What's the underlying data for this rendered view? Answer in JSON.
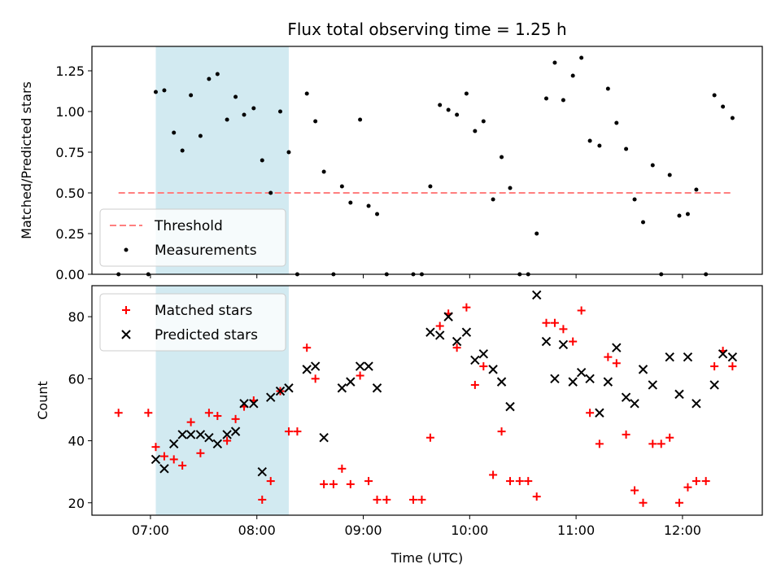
{
  "chart_data": [
    {
      "type": "scatter",
      "title": "Flux total observing time = 1.25 h",
      "xlabel": "",
      "ylabel": "Matched/Predicted stars",
      "x_unit": "hours UTC",
      "xlim": [
        6.45,
        12.75
      ],
      "ylim": [
        0,
        1.4
      ],
      "yticks": [
        0,
        0.25,
        0.5,
        0.75,
        1.0,
        1.25
      ],
      "ytick_labels": [
        "0.00",
        "0.25",
        "0.50",
        "0.75",
        "1.00",
        "1.25"
      ],
      "highlight_span": {
        "x_start": 7.05,
        "x_end": 8.3,
        "color": "#add8e6"
      },
      "legend_position": "lower-left",
      "grid": false,
      "series": [
        {
          "name": "Threshold",
          "kind": "line",
          "style": "dashed",
          "color": "#ff7f7f",
          "x": [
            6.7,
            12.47
          ],
          "y": [
            0.5,
            0.5
          ]
        },
        {
          "name": "Measurements",
          "kind": "scatter",
          "marker": "dot",
          "color": "#000000",
          "points": [
            [
              6.7,
              0.0
            ],
            [
              6.98,
              0.0
            ],
            [
              7.05,
              1.12
            ],
            [
              7.13,
              1.13
            ],
            [
              7.22,
              0.87
            ],
            [
              7.3,
              0.76
            ],
            [
              7.38,
              1.1
            ],
            [
              7.47,
              0.85
            ],
            [
              7.55,
              1.2
            ],
            [
              7.63,
              1.23
            ],
            [
              7.72,
              0.95
            ],
            [
              7.8,
              1.09
            ],
            [
              7.88,
              0.98
            ],
            [
              7.97,
              1.02
            ],
            [
              8.05,
              0.7
            ],
            [
              8.13,
              0.5
            ],
            [
              8.22,
              1.0
            ],
            [
              8.3,
              0.75
            ],
            [
              8.38,
              0.0
            ],
            [
              8.47,
              1.11
            ],
            [
              8.55,
              0.94
            ],
            [
              8.63,
              0.63
            ],
            [
              8.72,
              0.0
            ],
            [
              8.8,
              0.54
            ],
            [
              8.88,
              0.44
            ],
            [
              8.97,
              0.95
            ],
            [
              9.05,
              0.42
            ],
            [
              9.13,
              0.37
            ],
            [
              9.22,
              0.0
            ],
            [
              9.47,
              0.0
            ],
            [
              9.55,
              0.0
            ],
            [
              9.63,
              0.54
            ],
            [
              9.72,
              1.04
            ],
            [
              9.8,
              1.01
            ],
            [
              9.88,
              0.98
            ],
            [
              9.97,
              1.11
            ],
            [
              10.05,
              0.88
            ],
            [
              10.13,
              0.94
            ],
            [
              10.22,
              0.46
            ],
            [
              10.3,
              0.72
            ],
            [
              10.38,
              0.53
            ],
            [
              10.47,
              0.0
            ],
            [
              10.55,
              0.0
            ],
            [
              10.63,
              0.25
            ],
            [
              10.72,
              1.08
            ],
            [
              10.8,
              1.3
            ],
            [
              10.88,
              1.07
            ],
            [
              10.97,
              1.22
            ],
            [
              11.05,
              1.33
            ],
            [
              11.13,
              0.82
            ],
            [
              11.22,
              0.79
            ],
            [
              11.3,
              1.14
            ],
            [
              11.38,
              0.93
            ],
            [
              11.47,
              0.77
            ],
            [
              11.55,
              0.46
            ],
            [
              11.63,
              0.32
            ],
            [
              11.72,
              0.67
            ],
            [
              11.8,
              0.0
            ],
            [
              11.88,
              0.61
            ],
            [
              11.97,
              0.36
            ],
            [
              12.05,
              0.37
            ],
            [
              12.13,
              0.52
            ],
            [
              12.22,
              0.0
            ],
            [
              12.3,
              1.1
            ],
            [
              12.38,
              1.03
            ],
            [
              12.47,
              0.96
            ]
          ]
        }
      ]
    },
    {
      "type": "scatter",
      "title": "",
      "xlabel": "Time (UTC)",
      "ylabel": "Count",
      "x_unit": "hours UTC",
      "xlim": [
        6.45,
        12.75
      ],
      "ylim": [
        16,
        90
      ],
      "yticks": [
        20,
        40,
        60,
        80
      ],
      "ytick_labels": [
        "20",
        "40",
        "60",
        "80"
      ],
      "xticks": [
        7,
        8,
        9,
        10,
        11,
        12
      ],
      "xtick_labels": [
        "07:00",
        "08:00",
        "09:00",
        "10:00",
        "11:00",
        "12:00"
      ],
      "highlight_span": {
        "x_start": 7.05,
        "x_end": 8.3,
        "color": "#add8e6"
      },
      "legend_position": "upper-left",
      "grid": false,
      "series": [
        {
          "name": "Matched stars",
          "kind": "scatter",
          "marker": "plus",
          "color": "#ff0000",
          "points": [
            [
              6.7,
              49
            ],
            [
              6.98,
              49
            ],
            [
              7.05,
              38
            ],
            [
              7.13,
              35
            ],
            [
              7.22,
              34
            ],
            [
              7.3,
              32
            ],
            [
              7.38,
              46
            ],
            [
              7.47,
              36
            ],
            [
              7.55,
              49
            ],
            [
              7.63,
              48
            ],
            [
              7.72,
              40
            ],
            [
              7.8,
              47
            ],
            [
              7.88,
              51
            ],
            [
              7.97,
              53
            ],
            [
              8.05,
              21
            ],
            [
              8.13,
              27
            ],
            [
              8.22,
              56
            ],
            [
              8.3,
              43
            ],
            [
              8.38,
              43
            ],
            [
              8.47,
              70
            ],
            [
              8.55,
              60
            ],
            [
              8.63,
              26
            ],
            [
              8.72,
              26
            ],
            [
              8.8,
              31
            ],
            [
              8.88,
              26
            ],
            [
              8.97,
              61
            ],
            [
              9.05,
              27
            ],
            [
              9.13,
              21
            ],
            [
              9.22,
              21
            ],
            [
              9.47,
              21
            ],
            [
              9.55,
              21
            ],
            [
              9.63,
              41
            ],
            [
              9.72,
              77
            ],
            [
              9.8,
              81
            ],
            [
              9.88,
              70
            ],
            [
              9.97,
              83
            ],
            [
              10.05,
              58
            ],
            [
              10.13,
              64
            ],
            [
              10.22,
              29
            ],
            [
              10.3,
              43
            ],
            [
              10.38,
              27
            ],
            [
              10.47,
              27
            ],
            [
              10.55,
              27
            ],
            [
              10.63,
              22
            ],
            [
              10.72,
              78
            ],
            [
              10.8,
              78
            ],
            [
              10.88,
              76
            ],
            [
              10.97,
              72
            ],
            [
              11.05,
              82
            ],
            [
              11.13,
              49
            ],
            [
              11.22,
              39
            ],
            [
              11.3,
              67
            ],
            [
              11.38,
              65
            ],
            [
              11.47,
              42
            ],
            [
              11.55,
              24
            ],
            [
              11.63,
              20
            ],
            [
              11.72,
              39
            ],
            [
              11.8,
              39
            ],
            [
              11.88,
              41
            ],
            [
              11.97,
              20
            ],
            [
              12.05,
              25
            ],
            [
              12.13,
              27
            ],
            [
              12.22,
              27
            ],
            [
              12.3,
              64
            ],
            [
              12.38,
              69
            ],
            [
              12.47,
              64
            ]
          ]
        },
        {
          "name": "Predicted stars",
          "kind": "scatter",
          "marker": "x",
          "color": "#000000",
          "points": [
            [
              7.05,
              34
            ],
            [
              7.13,
              31
            ],
            [
              7.22,
              39
            ],
            [
              7.3,
              42
            ],
            [
              7.38,
              42
            ],
            [
              7.47,
              42
            ],
            [
              7.55,
              41
            ],
            [
              7.63,
              39
            ],
            [
              7.72,
              42
            ],
            [
              7.8,
              43
            ],
            [
              7.88,
              52
            ],
            [
              7.97,
              52
            ],
            [
              8.05,
              30
            ],
            [
              8.13,
              54
            ],
            [
              8.22,
              56
            ],
            [
              8.3,
              57
            ],
            [
              8.47,
              63
            ],
            [
              8.55,
              64
            ],
            [
              8.63,
              41
            ],
            [
              8.8,
              57
            ],
            [
              8.88,
              59
            ],
            [
              8.97,
              64
            ],
            [
              9.05,
              64
            ],
            [
              9.13,
              57
            ],
            [
              9.63,
              75
            ],
            [
              9.72,
              74
            ],
            [
              9.8,
              80
            ],
            [
              9.88,
              72
            ],
            [
              9.97,
              75
            ],
            [
              10.05,
              66
            ],
            [
              10.13,
              68
            ],
            [
              10.22,
              63
            ],
            [
              10.3,
              59
            ],
            [
              10.38,
              51
            ],
            [
              10.63,
              87
            ],
            [
              10.72,
              72
            ],
            [
              10.8,
              60
            ],
            [
              10.88,
              71
            ],
            [
              10.97,
              59
            ],
            [
              11.05,
              62
            ],
            [
              11.13,
              60
            ],
            [
              11.22,
              49
            ],
            [
              11.3,
              59
            ],
            [
              11.38,
              70
            ],
            [
              11.47,
              54
            ],
            [
              11.55,
              52
            ],
            [
              11.63,
              63
            ],
            [
              11.72,
              58
            ],
            [
              11.88,
              67
            ],
            [
              11.97,
              55
            ],
            [
              12.05,
              67
            ],
            [
              12.13,
              52
            ],
            [
              12.3,
              58
            ],
            [
              12.38,
              68
            ],
            [
              12.47,
              67
            ]
          ]
        }
      ]
    }
  ]
}
